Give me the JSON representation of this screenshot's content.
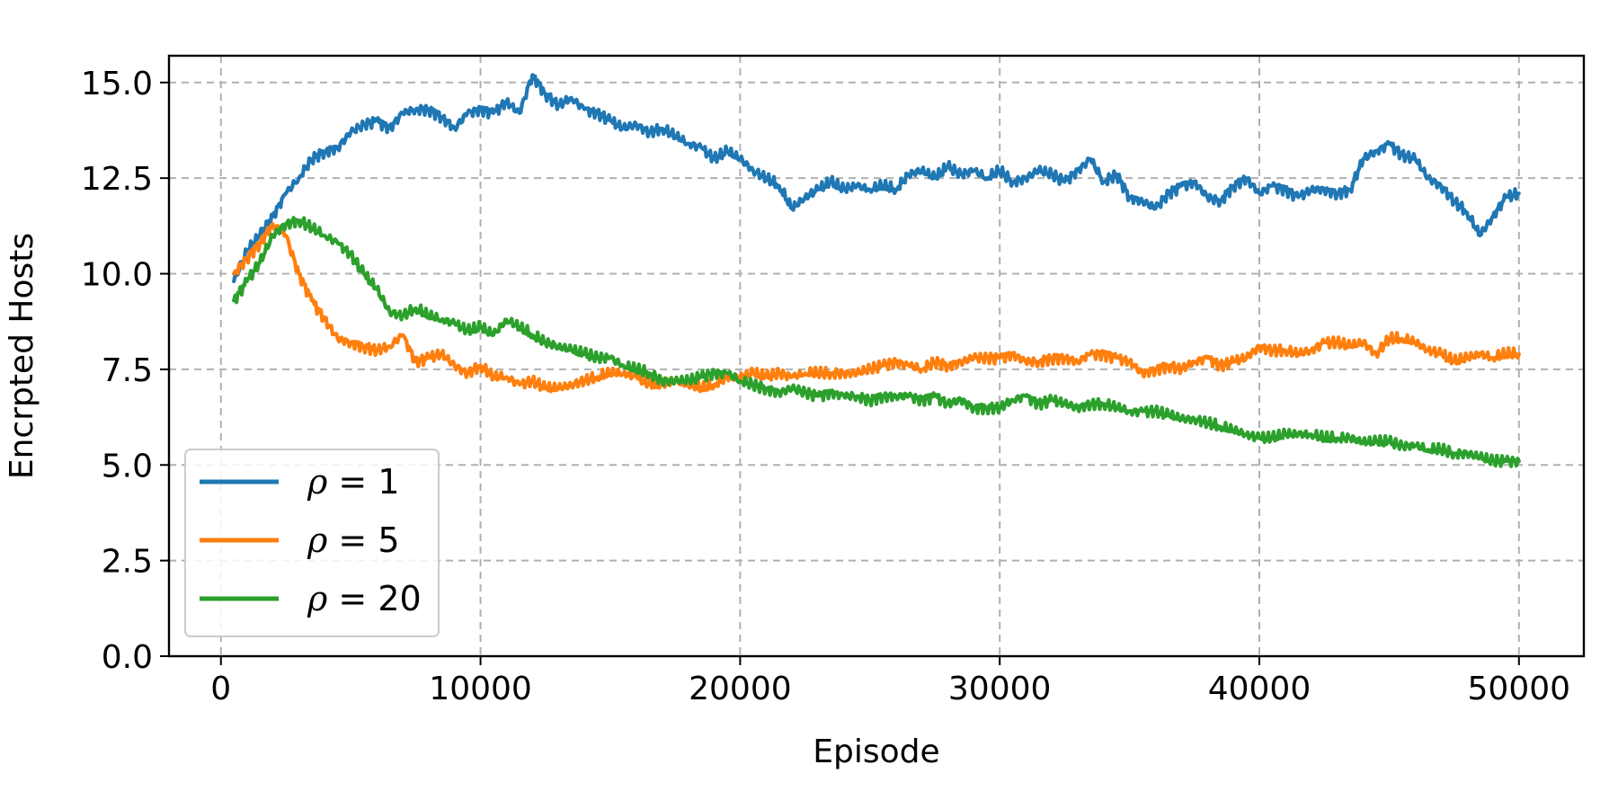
{
  "chart_data": {
    "type": "line",
    "title": "",
    "xlabel": "Episode",
    "ylabel": "Encrpted Hosts",
    "xlim": [
      -2000,
      52500
    ],
    "ylim": [
      0,
      15.7
    ],
    "xticks": [
      0,
      10000,
      20000,
      30000,
      40000,
      50000
    ],
    "xtick_labels": [
      "0",
      "10000",
      "20000",
      "30000",
      "40000",
      "50000"
    ],
    "yticks": [
      0,
      2.5,
      5,
      7.5,
      10,
      12.5,
      15
    ],
    "ytick_labels": [
      "0.0",
      "2.5",
      "5.0",
      "7.5",
      "10.0",
      "12.5",
      "15.0"
    ],
    "grid": true,
    "legend_position": "lower-left",
    "series": [
      {
        "name": "ρ = 1",
        "legend_symbol": "ρ",
        "legend_rest": " = 1",
        "color": "#1f77b4",
        "x": [
          500,
          1000,
          1500,
          2000,
          2500,
          3000,
          3500,
          4000,
          4500,
          5000,
          5500,
          6000,
          6500,
          7000,
          7500,
          8000,
          8500,
          9000,
          9500,
          10000,
          10500,
          11000,
          11500,
          12000,
          12500,
          13000,
          13500,
          14000,
          14500,
          15000,
          15500,
          16000,
          16500,
          17000,
          17500,
          18000,
          18500,
          19000,
          19500,
          20000,
          20500,
          21000,
          21500,
          22000,
          22500,
          23000,
          23500,
          24000,
          24500,
          25000,
          25500,
          26000,
          26500,
          27000,
          27500,
          28000,
          28500,
          29000,
          29500,
          30000,
          30500,
          31000,
          31500,
          32000,
          32500,
          33000,
          33500,
          34000,
          34500,
          35000,
          35500,
          36000,
          36500,
          37000,
          37500,
          38000,
          38500,
          39000,
          39500,
          40000,
          40500,
          41000,
          41500,
          42000,
          42500,
          43000,
          43500,
          44000,
          44500,
          45000,
          45500,
          46000,
          46500,
          47000,
          47500,
          48000,
          48500,
          49000,
          49500,
          50000
        ],
        "y": [
          9.8,
          10.6,
          11.0,
          11.5,
          12.1,
          12.5,
          13.0,
          13.2,
          13.3,
          13.7,
          13.9,
          14.0,
          13.8,
          14.2,
          14.3,
          14.3,
          14.1,
          13.8,
          14.2,
          14.3,
          14.2,
          14.5,
          14.2,
          15.2,
          14.7,
          14.4,
          14.6,
          14.3,
          14.2,
          14.0,
          13.8,
          13.9,
          13.7,
          13.8,
          13.6,
          13.4,
          13.3,
          13.0,
          13.2,
          13.0,
          12.7,
          12.5,
          12.3,
          11.7,
          12.0,
          12.2,
          12.4,
          12.2,
          12.3,
          12.2,
          12.3,
          12.2,
          12.6,
          12.7,
          12.5,
          12.8,
          12.6,
          12.7,
          12.5,
          12.7,
          12.4,
          12.5,
          12.7,
          12.6,
          12.4,
          12.7,
          13.0,
          12.4,
          12.6,
          12.0,
          11.9,
          11.7,
          12.1,
          12.3,
          12.4,
          12.0,
          11.9,
          12.3,
          12.5,
          12.1,
          12.3,
          12.2,
          12.0,
          12.2,
          12.2,
          12.1,
          12.2,
          13.0,
          13.2,
          13.4,
          13.1,
          13.0,
          12.5,
          12.3,
          11.9,
          11.6,
          11.0,
          11.5,
          12.0,
          12.1
        ]
      },
      {
        "name": "ρ = 5",
        "legend_symbol": "ρ",
        "legend_rest": " = 5",
        "color": "#ff7f0e",
        "x": [
          500,
          1000,
          1500,
          2000,
          2500,
          3000,
          3500,
          4000,
          4500,
          5000,
          5500,
          6000,
          6500,
          7000,
          7500,
          8000,
          8500,
          9000,
          9500,
          10000,
          10500,
          11000,
          11500,
          12000,
          12500,
          13000,
          13500,
          14000,
          14500,
          15000,
          15500,
          16000,
          16500,
          17000,
          17500,
          18000,
          18500,
          19000,
          19500,
          20000,
          20500,
          21000,
          21500,
          22000,
          22500,
          23000,
          23500,
          24000,
          24500,
          25000,
          25500,
          26000,
          26500,
          27000,
          27500,
          28000,
          28500,
          29000,
          29500,
          30000,
          30500,
          31000,
          31500,
          32000,
          32500,
          33000,
          33500,
          34000,
          34500,
          35000,
          35500,
          36000,
          36500,
          37000,
          37500,
          38000,
          38500,
          39000,
          39500,
          40000,
          40500,
          41000,
          41500,
          42000,
          42500,
          43000,
          43500,
          44000,
          44500,
          45000,
          45500,
          46000,
          46500,
          47000,
          47500,
          48000,
          48500,
          49000,
          49500,
          50000
        ],
        "y": [
          10.0,
          10.4,
          10.8,
          11.3,
          11.0,
          10.0,
          9.3,
          8.8,
          8.3,
          8.2,
          8.1,
          8.0,
          8.1,
          8.4,
          7.7,
          7.8,
          7.9,
          7.6,
          7.4,
          7.6,
          7.3,
          7.3,
          7.1,
          7.2,
          7.0,
          7.0,
          7.1,
          7.2,
          7.3,
          7.4,
          7.4,
          7.3,
          7.1,
          7.1,
          7.2,
          7.1,
          7.0,
          7.1,
          7.3,
          7.3,
          7.4,
          7.3,
          7.4,
          7.3,
          7.4,
          7.4,
          7.4,
          7.4,
          7.4,
          7.5,
          7.6,
          7.7,
          7.6,
          7.5,
          7.7,
          7.6,
          7.7,
          7.8,
          7.8,
          7.8,
          7.9,
          7.7,
          7.7,
          7.8,
          7.8,
          7.7,
          7.9,
          7.9,
          7.8,
          7.7,
          7.4,
          7.5,
          7.6,
          7.5,
          7.7,
          7.8,
          7.6,
          7.7,
          7.8,
          8.1,
          8.0,
          8.0,
          7.9,
          8.0,
          8.2,
          8.2,
          8.1,
          8.2,
          7.9,
          8.3,
          8.3,
          8.2,
          8.0,
          7.9,
          7.7,
          7.8,
          7.9,
          7.8,
          7.9,
          7.9
        ]
      },
      {
        "name": "ρ = 20",
        "legend_symbol": "ρ",
        "legend_rest": " = 20",
        "color": "#2ca02c",
        "x": [
          500,
          1000,
          1500,
          2000,
          2500,
          3000,
          3500,
          4000,
          4500,
          5000,
          5500,
          6000,
          6500,
          7000,
          7500,
          8000,
          8500,
          9000,
          9500,
          10000,
          10500,
          11000,
          11500,
          12000,
          12500,
          13000,
          13500,
          14000,
          14500,
          15000,
          15500,
          16000,
          16500,
          17000,
          17500,
          18000,
          18500,
          19000,
          19500,
          20000,
          20500,
          21000,
          21500,
          22000,
          22500,
          23000,
          23500,
          24000,
          24500,
          25000,
          25500,
          26000,
          26500,
          27000,
          27500,
          28000,
          28500,
          29000,
          29500,
          30000,
          30500,
          31000,
          31500,
          32000,
          32500,
          33000,
          33500,
          34000,
          34500,
          35000,
          35500,
          36000,
          36500,
          37000,
          37500,
          38000,
          38500,
          39000,
          39500,
          40000,
          40500,
          41000,
          41500,
          42000,
          42500,
          43000,
          43500,
          44000,
          44500,
          45000,
          45500,
          46000,
          46500,
          47000,
          47500,
          48000,
          48500,
          49000,
          49500,
          50000
        ],
        "y": [
          9.3,
          9.8,
          10.3,
          11.0,
          11.3,
          11.4,
          11.2,
          11.0,
          10.8,
          10.5,
          10.0,
          9.6,
          9.0,
          8.9,
          9.1,
          8.9,
          8.8,
          8.7,
          8.5,
          8.6,
          8.4,
          8.8,
          8.6,
          8.4,
          8.2,
          8.1,
          8.0,
          7.9,
          7.8,
          7.8,
          7.6,
          7.5,
          7.4,
          7.2,
          7.2,
          7.2,
          7.3,
          7.4,
          7.4,
          7.2,
          7.1,
          7.0,
          6.9,
          7.0,
          6.9,
          6.8,
          6.9,
          6.8,
          6.8,
          6.7,
          6.8,
          6.8,
          6.8,
          6.7,
          6.8,
          6.6,
          6.7,
          6.5,
          6.5,
          6.5,
          6.7,
          6.8,
          6.6,
          6.7,
          6.6,
          6.5,
          6.6,
          6.6,
          6.5,
          6.4,
          6.4,
          6.4,
          6.3,
          6.2,
          6.2,
          6.1,
          6.0,
          5.9,
          5.8,
          5.7,
          5.7,
          5.8,
          5.8,
          5.8,
          5.7,
          5.7,
          5.7,
          5.6,
          5.6,
          5.6,
          5.5,
          5.5,
          5.4,
          5.4,
          5.3,
          5.3,
          5.2,
          5.1,
          5.1,
          5.1
        ]
      }
    ]
  }
}
